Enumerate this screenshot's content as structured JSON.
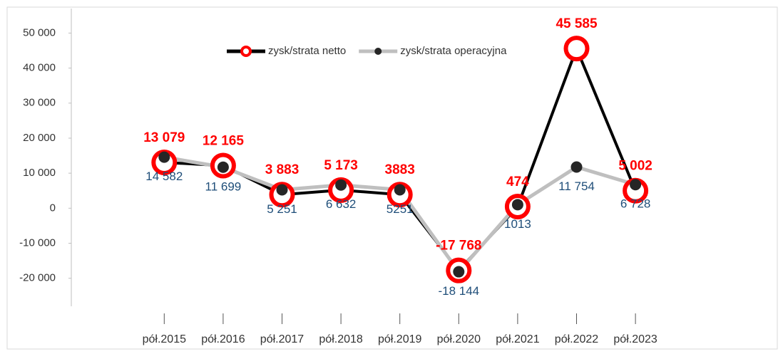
{
  "chart_data": {
    "type": "line",
    "categories": [
      "pół.2015",
      "pół.2016",
      "pół.2017",
      "pół.2018",
      "pół.2019",
      "pół.2020",
      "pół.2021",
      "pół.2022",
      "pół.2023"
    ],
    "series": [
      {
        "name": "zysk/strata netto",
        "color": "#000000",
        "marker_color": "#ff0000",
        "values": [
          13079,
          12165,
          3883,
          5173,
          3883,
          -17768,
          474,
          45585,
          5002
        ],
        "value_labels": [
          "13 079",
          "12 165",
          "3 883",
          "5 173",
          "3883",
          "-17 768",
          "474",
          "45 585",
          "5 002"
        ]
      },
      {
        "name": "zysk/strata operacyjna",
        "color": "#bfbfbf",
        "marker_color": "#262626",
        "values": [
          14582,
          11699,
          5251,
          6632,
          5251,
          -18144,
          1013,
          11754,
          6728
        ],
        "value_labels": [
          "14 582",
          "11 699",
          "5 251",
          "6 632",
          "5251",
          "-18 144",
          "1013",
          "11 754",
          "6 728"
        ]
      }
    ],
    "ylim": [
      -28000,
      57000
    ],
    "yticks": [
      {
        "value": -20000,
        "label": "-20 000"
      },
      {
        "value": -10000,
        "label": "-10 000"
      },
      0,
      {
        "value": 10000,
        "label": "10 000"
      },
      {
        "value": 20000,
        "label": "20 000"
      },
      {
        "value": 30000,
        "label": "30 000"
      },
      {
        "value": 40000,
        "label": "40 000"
      },
      {
        "value": 50000,
        "label": "50 000"
      }
    ],
    "grid": false,
    "legend": "top"
  }
}
